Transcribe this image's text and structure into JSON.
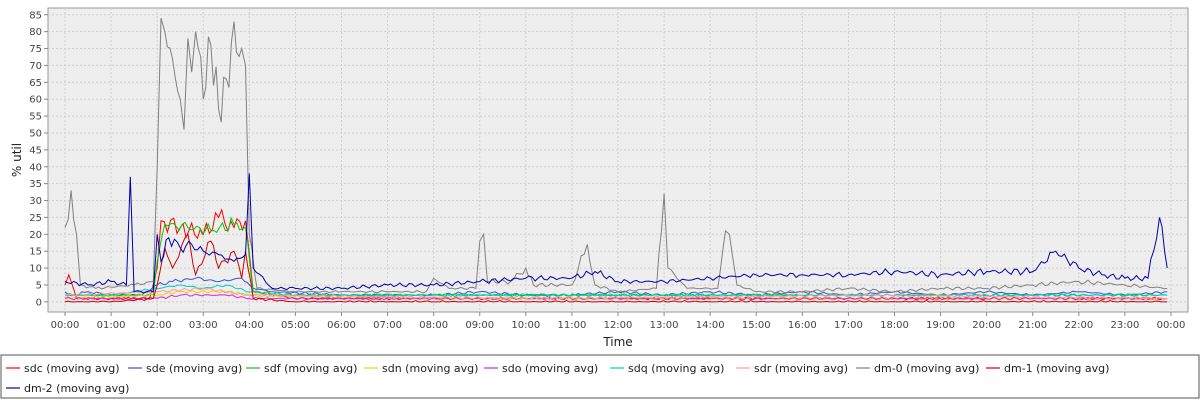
{
  "chart_data": {
    "type": "line",
    "title": "",
    "xlabel": "Time",
    "ylabel": "% util",
    "ylim": [
      -3,
      87
    ],
    "yticks": [
      0,
      5,
      10,
      15,
      20,
      25,
      30,
      35,
      40,
      45,
      50,
      55,
      60,
      65,
      70,
      75,
      80,
      85
    ],
    "xrange": [
      "00:00",
      "24:00"
    ],
    "xticks": [
      "00:00",
      "01:00",
      "02:00",
      "03:00",
      "04:00",
      "05:00",
      "06:00",
      "07:00",
      "08:00",
      "09:00",
      "10:00",
      "11:00",
      "12:00",
      "13:00",
      "14:00",
      "15:00",
      "16:00",
      "17:00",
      "18:00",
      "19:00",
      "20:00",
      "21:00",
      "22:00",
      "23:00",
      "00:00"
    ],
    "grid": true,
    "legend_position": "bottom",
    "series": [
      {
        "name": "sdc (moving avg)",
        "color": "#ff0000",
        "points": [
          [
            "00:00",
            5
          ],
          [
            "00:05",
            8
          ],
          [
            "00:15",
            1
          ],
          [
            "01:00",
            1
          ],
          [
            "01:30",
            1
          ],
          [
            "01:50",
            1
          ],
          [
            "02:00",
            10
          ],
          [
            "02:05",
            24
          ],
          [
            "02:30",
            22
          ],
          [
            "03:00",
            20
          ],
          [
            "03:20",
            25
          ],
          [
            "03:40",
            22
          ],
          [
            "03:55",
            24
          ],
          [
            "04:05",
            3
          ],
          [
            "05:00",
            1
          ],
          [
            "06:00",
            1
          ],
          [
            "08:00",
            1
          ],
          [
            "10:00",
            1
          ],
          [
            "12:00",
            1
          ],
          [
            "14:00",
            1
          ],
          [
            "16:00",
            1
          ],
          [
            "18:00",
            1
          ],
          [
            "20:00",
            1
          ],
          [
            "22:00",
            1
          ],
          [
            "23:50",
            1
          ]
        ]
      },
      {
        "name": "sde (moving avg)",
        "color": "#3355dd",
        "points": [
          [
            "00:00",
            3
          ],
          [
            "00:10",
            2
          ],
          [
            "00:30",
            3
          ],
          [
            "01:00",
            2
          ],
          [
            "01:40",
            2
          ],
          [
            "02:00",
            5
          ],
          [
            "02:20",
            6
          ],
          [
            "02:50",
            7
          ],
          [
            "03:20",
            6
          ],
          [
            "03:50",
            7
          ],
          [
            "04:05",
            4
          ],
          [
            "04:30",
            3
          ],
          [
            "06:00",
            2
          ],
          [
            "08:00",
            2
          ],
          [
            "09:00",
            3
          ],
          [
            "10:00",
            2
          ],
          [
            "11:00",
            2
          ],
          [
            "12:00",
            3
          ],
          [
            "13:00",
            2
          ],
          [
            "14:00",
            3
          ],
          [
            "15:00",
            2
          ],
          [
            "16:00",
            3
          ],
          [
            "17:00",
            2
          ],
          [
            "18:00",
            3
          ],
          [
            "19:00",
            2
          ],
          [
            "20:00",
            3
          ],
          [
            "21:00",
            2
          ],
          [
            "22:00",
            3
          ],
          [
            "23:00",
            2
          ],
          [
            "23:55",
            3
          ]
        ]
      },
      {
        "name": "sdf (moving avg)",
        "color": "#00cc00",
        "points": [
          [
            "00:00",
            2
          ],
          [
            "01:00",
            2
          ],
          [
            "01:55",
            2
          ],
          [
            "02:00",
            12
          ],
          [
            "02:10",
            23
          ],
          [
            "02:40",
            22
          ],
          [
            "03:10",
            21
          ],
          [
            "03:40",
            23
          ],
          [
            "03:55",
            22
          ],
          [
            "04:05",
            3
          ],
          [
            "05:00",
            2
          ],
          [
            "08:00",
            2
          ],
          [
            "12:00",
            2
          ],
          [
            "16:00",
            2
          ],
          [
            "20:00",
            2
          ],
          [
            "23:55",
            2
          ]
        ]
      },
      {
        "name": "sdn (moving avg)",
        "color": "#dddd00",
        "points": [
          [
            "00:00",
            1
          ],
          [
            "02:00",
            2
          ],
          [
            "02:30",
            3
          ],
          [
            "03:30",
            3
          ],
          [
            "04:00",
            2
          ],
          [
            "08:00",
            1
          ],
          [
            "16:00",
            1
          ],
          [
            "23:55",
            1
          ]
        ]
      },
      {
        "name": "sdo (moving avg)",
        "color": "#dd22dd",
        "points": [
          [
            "00:00",
            1
          ],
          [
            "02:00",
            1
          ],
          [
            "02:30",
            2
          ],
          [
            "03:30",
            2
          ],
          [
            "04:00",
            1
          ],
          [
            "12:00",
            1
          ],
          [
            "23:55",
            1
          ]
        ]
      },
      {
        "name": "sdq (moving avg)",
        "color": "#00cccc",
        "points": [
          [
            "00:00",
            2
          ],
          [
            "01:00",
            2
          ],
          [
            "02:00",
            4
          ],
          [
            "02:30",
            5
          ],
          [
            "03:00",
            4
          ],
          [
            "03:30",
            5
          ],
          [
            "04:00",
            3
          ],
          [
            "05:00",
            2
          ],
          [
            "10:00",
            2
          ],
          [
            "15:00",
            2
          ],
          [
            "20:00",
            2
          ],
          [
            "23:55",
            2
          ]
        ]
      },
      {
        "name": "sdr (moving avg)",
        "color": "#ff9999",
        "points": [
          [
            "00:00",
            2
          ],
          [
            "02:00",
            3
          ],
          [
            "03:00",
            4
          ],
          [
            "04:00",
            2
          ],
          [
            "10:00",
            1
          ],
          [
            "18:00",
            2
          ],
          [
            "23:55",
            1
          ]
        ]
      },
      {
        "name": "dm-0 (moving avg)",
        "color": "#808080",
        "points": [
          [
            "00:00",
            22
          ],
          [
            "00:08",
            33
          ],
          [
            "00:15",
            20
          ],
          [
            "00:20",
            5
          ],
          [
            "00:40",
            4
          ],
          [
            "01:30",
            5
          ],
          [
            "01:55",
            6
          ],
          [
            "02:00",
            40
          ],
          [
            "02:05",
            84
          ],
          [
            "02:10",
            80
          ],
          [
            "02:20",
            72
          ],
          [
            "02:30",
            60
          ],
          [
            "02:35",
            51
          ],
          [
            "02:40",
            78
          ],
          [
            "02:45",
            68
          ],
          [
            "02:50",
            80
          ],
          [
            "03:00",
            60
          ],
          [
            "03:10",
            76
          ],
          [
            "03:20",
            57
          ],
          [
            "03:30",
            66
          ],
          [
            "03:40",
            83
          ],
          [
            "03:50",
            75
          ],
          [
            "03:55",
            70
          ],
          [
            "04:00",
            20
          ],
          [
            "04:10",
            4
          ],
          [
            "05:00",
            3
          ],
          [
            "06:00",
            3
          ],
          [
            "07:00",
            3
          ],
          [
            "07:50",
            3
          ],
          [
            "08:00",
            7
          ],
          [
            "08:20",
            4
          ],
          [
            "08:55",
            4
          ],
          [
            "09:00",
            18
          ],
          [
            "09:05",
            20
          ],
          [
            "09:10",
            6
          ],
          [
            "09:40",
            6
          ],
          [
            "10:00",
            10
          ],
          [
            "10:10",
            5
          ],
          [
            "11:00",
            5
          ],
          [
            "11:20",
            17
          ],
          [
            "11:30",
            5
          ],
          [
            "12:00",
            3
          ],
          [
            "12:50",
            4
          ],
          [
            "13:00",
            32
          ],
          [
            "13:05",
            10
          ],
          [
            "13:30",
            4
          ],
          [
            "14:10",
            4
          ],
          [
            "14:20",
            21
          ],
          [
            "14:25",
            20
          ],
          [
            "14:35",
            5
          ],
          [
            "15:00",
            3
          ],
          [
            "16:00",
            3
          ],
          [
            "17:00",
            4
          ],
          [
            "18:00",
            3
          ],
          [
            "19:00",
            4
          ],
          [
            "20:00",
            4
          ],
          [
            "21:00",
            5
          ],
          [
            "22:00",
            6
          ],
          [
            "23:00",
            5
          ],
          [
            "23:55",
            4
          ]
        ]
      },
      {
        "name": "dm-1 (moving avg)",
        "color": "#cc0000",
        "points": [
          [
            "00:00",
            0
          ],
          [
            "01:00",
            0
          ],
          [
            "01:55",
            1
          ],
          [
            "02:00",
            5
          ],
          [
            "02:10",
            16
          ],
          [
            "02:20",
            10
          ],
          [
            "02:40",
            20
          ],
          [
            "02:50",
            8
          ],
          [
            "03:10",
            18
          ],
          [
            "03:20",
            10
          ],
          [
            "03:40",
            15
          ],
          [
            "03:50",
            7
          ],
          [
            "03:55",
            15
          ],
          [
            "04:05",
            1
          ],
          [
            "05:00",
            0
          ],
          [
            "08:00",
            0
          ],
          [
            "12:00",
            0
          ],
          [
            "16:00",
            0
          ],
          [
            "20:00",
            0
          ],
          [
            "23:55",
            0
          ]
        ]
      },
      {
        "name": "dm-2 (moving avg)",
        "color": "#0000aa",
        "points": [
          [
            "00:00",
            6
          ],
          [
            "00:30",
            5
          ],
          [
            "01:00",
            6
          ],
          [
            "01:20",
            5
          ],
          [
            "01:25",
            37
          ],
          [
            "01:30",
            3
          ],
          [
            "01:55",
            3
          ],
          [
            "02:00",
            20
          ],
          [
            "02:05",
            12
          ],
          [
            "02:15",
            19
          ],
          [
            "02:30",
            16
          ],
          [
            "02:45",
            17
          ],
          [
            "03:00",
            15
          ],
          [
            "03:20",
            14
          ],
          [
            "03:40",
            12
          ],
          [
            "03:55",
            14
          ],
          [
            "04:00",
            38
          ],
          [
            "04:05",
            10
          ],
          [
            "04:30",
            4
          ],
          [
            "05:00",
            4
          ],
          [
            "06:00",
            4
          ],
          [
            "07:00",
            5
          ],
          [
            "08:00",
            5
          ],
          [
            "09:00",
            6
          ],
          [
            "10:00",
            7
          ],
          [
            "11:00",
            7
          ],
          [
            "11:30",
            9
          ],
          [
            "12:00",
            6
          ],
          [
            "13:00",
            6
          ],
          [
            "14:00",
            7
          ],
          [
            "15:00",
            8
          ],
          [
            "16:00",
            8
          ],
          [
            "17:00",
            8
          ],
          [
            "18:00",
            9
          ],
          [
            "19:00",
            8
          ],
          [
            "20:00",
            9
          ],
          [
            "21:00",
            9
          ],
          [
            "21:30",
            15
          ],
          [
            "22:00",
            10
          ],
          [
            "22:30",
            8
          ],
          [
            "23:00",
            7
          ],
          [
            "23:30",
            7
          ],
          [
            "23:45",
            25
          ],
          [
            "23:55",
            10
          ]
        ]
      }
    ]
  }
}
